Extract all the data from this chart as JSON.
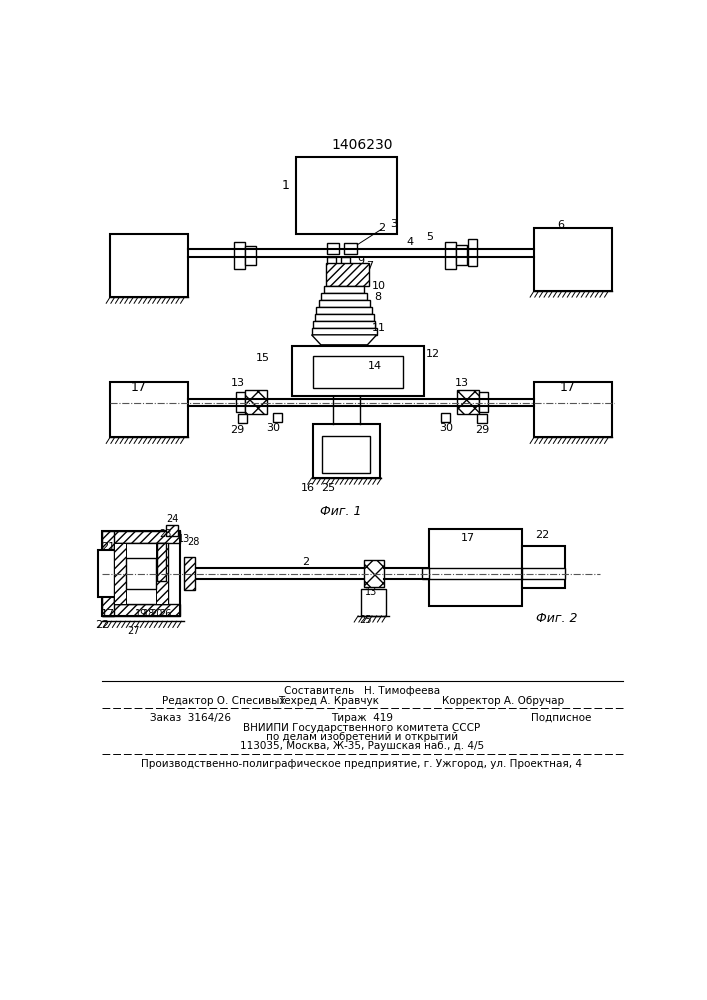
{
  "patent_number": "1406230",
  "background_color": "#ffffff",
  "line_color": "#000000",
  "fig_label1": "Фиг. 1",
  "fig_label2": "Фиг. 2"
}
